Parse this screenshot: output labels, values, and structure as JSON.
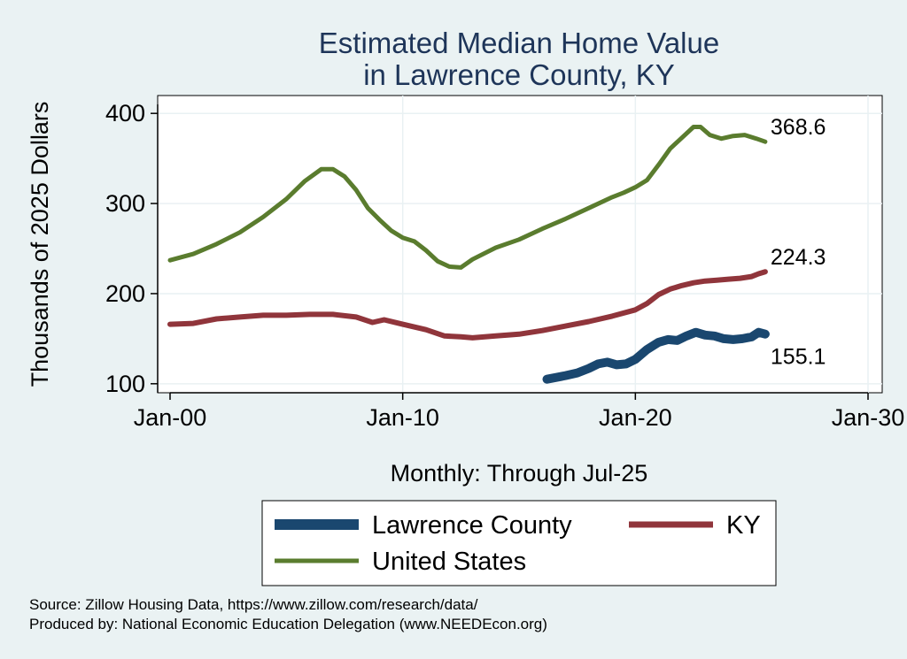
{
  "chart_data": {
    "type": "line",
    "title": [
      "Estimated Median Home Value",
      "in Lawrence County, KY"
    ],
    "ylabel": "Thousands of 2025 Dollars",
    "xlabel": "Monthly: Through Jul-25",
    "xlim": [
      2000,
      2030
    ],
    "ylim": [
      90,
      410
    ],
    "x_ticks": [
      {
        "value": 2000,
        "label": "Jan-00"
      },
      {
        "value": 2010,
        "label": "Jan-10"
      },
      {
        "value": 2020,
        "label": "Jan-20"
      },
      {
        "value": 2030,
        "label": "Jan-30"
      }
    ],
    "y_ticks": [
      100,
      200,
      300,
      400
    ],
    "grid": true,
    "legend_position": "bottom",
    "series": [
      {
        "name": "Lawrence County",
        "color": "#1a476f",
        "end_label": "155.1",
        "points": [
          [
            2016.2,
            105
          ],
          [
            2016.6,
            107
          ],
          [
            2017.0,
            109
          ],
          [
            2017.5,
            112
          ],
          [
            2018.0,
            117
          ],
          [
            2018.4,
            122
          ],
          [
            2018.8,
            124
          ],
          [
            2019.2,
            121
          ],
          [
            2019.6,
            122
          ],
          [
            2020.0,
            127
          ],
          [
            2020.5,
            138
          ],
          [
            2021.0,
            146
          ],
          [
            2021.4,
            149
          ],
          [
            2021.8,
            148
          ],
          [
            2022.2,
            153
          ],
          [
            2022.6,
            157
          ],
          [
            2023.0,
            154
          ],
          [
            2023.4,
            153
          ],
          [
            2023.8,
            150
          ],
          [
            2024.2,
            149
          ],
          [
            2024.6,
            150
          ],
          [
            2025.0,
            152
          ],
          [
            2025.3,
            157
          ],
          [
            2025.58,
            155.1
          ]
        ]
      },
      {
        "name": "KY",
        "color": "#90353b",
        "end_label": "224.3",
        "points": [
          [
            2000.0,
            166
          ],
          [
            2001.0,
            167
          ],
          [
            2002.0,
            172
          ],
          [
            2003.0,
            174
          ],
          [
            2004.0,
            176
          ],
          [
            2005.0,
            176
          ],
          [
            2006.0,
            177
          ],
          [
            2007.0,
            177
          ],
          [
            2008.0,
            174
          ],
          [
            2008.7,
            168
          ],
          [
            2009.2,
            171
          ],
          [
            2010.0,
            166
          ],
          [
            2011.0,
            160
          ],
          [
            2011.8,
            153
          ],
          [
            2012.5,
            152
          ],
          [
            2013.0,
            151
          ],
          [
            2014.0,
            153
          ],
          [
            2015.0,
            155
          ],
          [
            2016.0,
            159
          ],
          [
            2017.0,
            164
          ],
          [
            2018.0,
            169
          ],
          [
            2019.0,
            175
          ],
          [
            2020.0,
            182
          ],
          [
            2020.5,
            189
          ],
          [
            2021.0,
            199
          ],
          [
            2021.5,
            205
          ],
          [
            2022.0,
            209
          ],
          [
            2022.5,
            212
          ],
          [
            2023.0,
            214
          ],
          [
            2023.5,
            215
          ],
          [
            2024.0,
            216
          ],
          [
            2024.5,
            217
          ],
          [
            2025.0,
            219
          ],
          [
            2025.3,
            222
          ],
          [
            2025.58,
            224.3
          ]
        ]
      },
      {
        "name": "United States",
        "color": "#5a7c2e",
        "end_label": "368.6",
        "points": [
          [
            2000.0,
            237
          ],
          [
            2001.0,
            244
          ],
          [
            2002.0,
            255
          ],
          [
            2003.0,
            268
          ],
          [
            2004.0,
            285
          ],
          [
            2005.0,
            305
          ],
          [
            2005.8,
            325
          ],
          [
            2006.5,
            338
          ],
          [
            2007.0,
            338
          ],
          [
            2007.5,
            330
          ],
          [
            2008.0,
            315
          ],
          [
            2008.5,
            295
          ],
          [
            2009.0,
            282
          ],
          [
            2009.5,
            270
          ],
          [
            2010.0,
            262
          ],
          [
            2010.5,
            258
          ],
          [
            2011.0,
            248
          ],
          [
            2011.5,
            236
          ],
          [
            2012.0,
            230
          ],
          [
            2012.5,
            229
          ],
          [
            2013.0,
            238
          ],
          [
            2014.0,
            251
          ],
          [
            2015.0,
            260
          ],
          [
            2016.0,
            272
          ],
          [
            2017.0,
            283
          ],
          [
            2018.0,
            295
          ],
          [
            2019.0,
            307
          ],
          [
            2019.5,
            312
          ],
          [
            2020.0,
            318
          ],
          [
            2020.5,
            326
          ],
          [
            2021.0,
            343
          ],
          [
            2021.5,
            361
          ],
          [
            2022.0,
            373
          ],
          [
            2022.5,
            385
          ],
          [
            2022.8,
            385
          ],
          [
            2023.2,
            376
          ],
          [
            2023.7,
            372
          ],
          [
            2024.2,
            375
          ],
          [
            2024.7,
            376
          ],
          [
            2025.2,
            372
          ],
          [
            2025.58,
            368.6
          ]
        ]
      }
    ],
    "source_lines": [
      "Source: Zillow Housing Data, https://www.zillow.com/research/data/",
      "Produced by: National Economic Education Delegation (www.NEEDEcon.org)"
    ]
  }
}
